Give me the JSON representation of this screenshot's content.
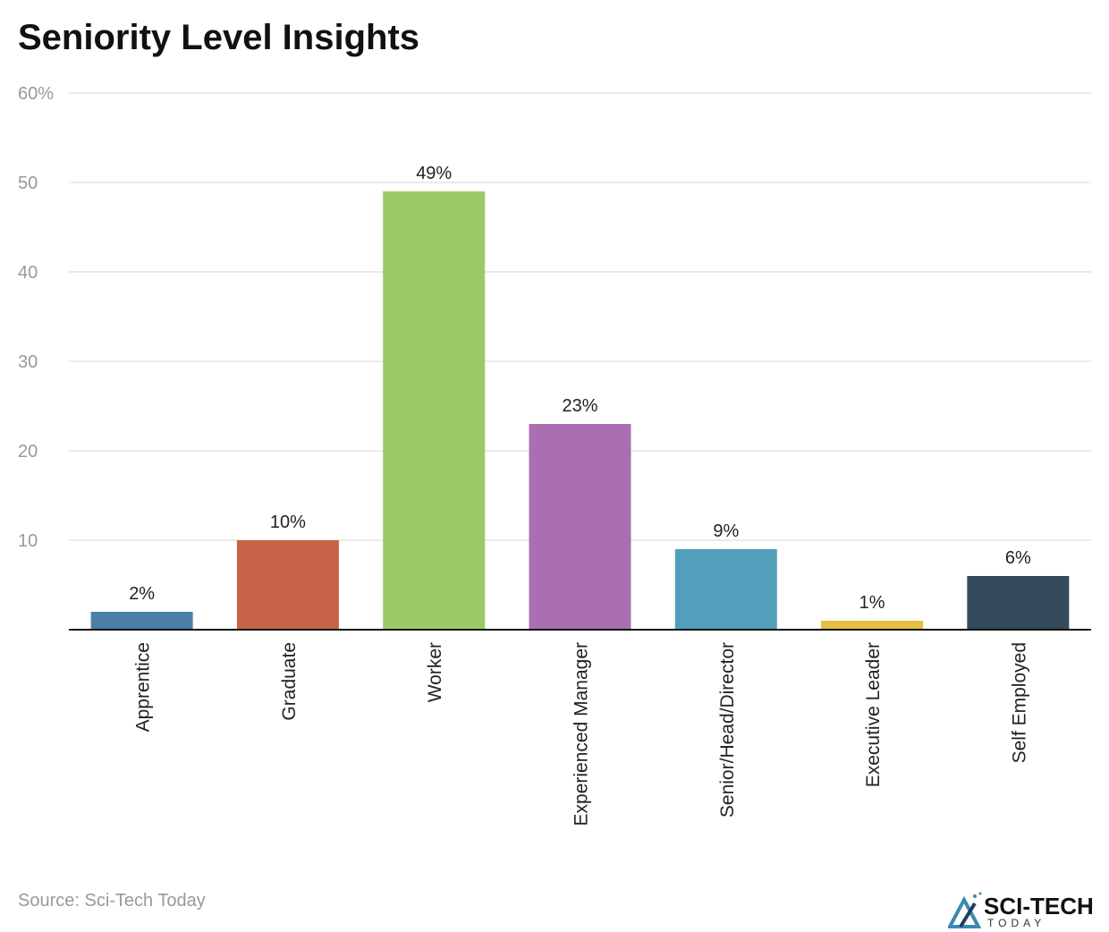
{
  "title": "Seniority Level Insights",
  "source": "Source: Sci-Tech Today",
  "logo": {
    "text": "SCI-TECH",
    "subtext": "TODAY"
  },
  "chart_data": {
    "type": "bar",
    "title": "Seniority Level Insights",
    "categories": [
      "Apprentice",
      "Graduate",
      "Worker",
      "Experienced Manager",
      "Senior/Head/Director",
      "Executive Leader",
      "Self Employed"
    ],
    "values": [
      2,
      10,
      49,
      23,
      9,
      1,
      6
    ],
    "data_labels": [
      "2%",
      "10%",
      "49%",
      "23%",
      "9%",
      "1%",
      "6%"
    ],
    "colors": [
      "#4a7fa7",
      "#c86246",
      "#9aca66",
      "#a96fb0",
      "#529fbb",
      "#e5bf42",
      "#334a5a"
    ],
    "ylim": [
      0,
      60
    ],
    "yticks": [
      10,
      20,
      30,
      40,
      50,
      60
    ],
    "ytick_labels": [
      "10",
      "20",
      "30",
      "40",
      "50",
      "60%"
    ],
    "grid": true,
    "xlabel": "",
    "ylabel": ""
  }
}
